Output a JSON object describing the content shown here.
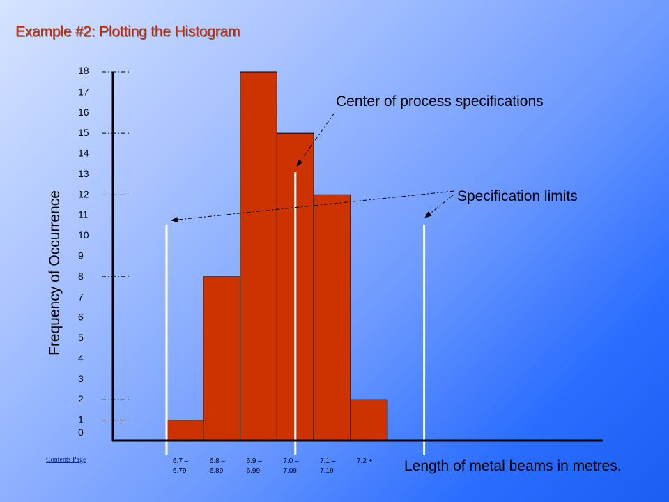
{
  "slide": {
    "title": "Example #2: Plotting the Histogram",
    "contents_link": "Contents Page"
  },
  "colors": {
    "bar": "#cc3300",
    "limit_line": "#ffffff",
    "title": "#c4260a"
  },
  "chart_data": {
    "type": "bar",
    "title": "",
    "xlabel": "Length of metal beams in metres.",
    "ylabel": "Frequency of Occurrence",
    "ylim": [
      0,
      18
    ],
    "yticks": [
      0,
      1,
      2,
      3,
      4,
      5,
      6,
      7,
      8,
      9,
      10,
      11,
      12,
      13,
      14,
      15,
      16,
      17,
      18
    ],
    "ydash_ticks": [
      1,
      2,
      8,
      12,
      15,
      18
    ],
    "categories": [
      [
        "6.7 –",
        "6.79"
      ],
      [
        "6.8 –",
        "6.89"
      ],
      [
        "6.9 –",
        "6.99"
      ],
      [
        "7.0 –",
        "7.09"
      ],
      [
        "7.1 –",
        "7.19"
      ],
      [
        "7.2 +"
      ]
    ],
    "values": [
      1,
      8,
      18,
      15,
      12,
      2
    ],
    "annotations": [
      {
        "id": "center",
        "text": "Center of process specifications"
      },
      {
        "id": "limits",
        "text": "Specification limits"
      }
    ],
    "reference_lines": [
      {
        "name": "lower specification limit",
        "x": 6.7
      },
      {
        "name": "center of process specifications",
        "x": 7.05
      },
      {
        "name": "upper specification limit",
        "x": 7.4
      }
    ]
  }
}
